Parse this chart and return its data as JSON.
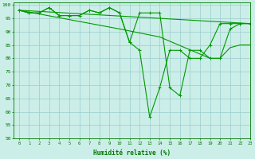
{
  "xlabel": "Humidité relative (%)",
  "xlim": [
    -0.5,
    23
  ],
  "ylim": [
    50,
    101
  ],
  "xticks": [
    0,
    1,
    2,
    3,
    4,
    5,
    6,
    7,
    8,
    9,
    10,
    11,
    12,
    13,
    14,
    15,
    16,
    17,
    18,
    19,
    20,
    21,
    22,
    23
  ],
  "yticks": [
    50,
    55,
    60,
    65,
    70,
    75,
    80,
    85,
    90,
    95,
    100
  ],
  "background_color": "#cceee8",
  "line_color": "#009900",
  "grid_color": "#99cccc",
  "line1_x": [
    0,
    1,
    2,
    3,
    4,
    5,
    6,
    7,
    8,
    9,
    10,
    11,
    12,
    13,
    14,
    15,
    16,
    17,
    18,
    19,
    20,
    21,
    22,
    23
  ],
  "line1_y": [
    98,
    97,
    97,
    99,
    96,
    96,
    96,
    98,
    97,
    99,
    97,
    86,
    83,
    58,
    69,
    83,
    83,
    80,
    80,
    85,
    93,
    93,
    93,
    93
  ],
  "line2_x": [
    0,
    1,
    2,
    3,
    4,
    5,
    6,
    7,
    8,
    9,
    10,
    11,
    12,
    13,
    14,
    15,
    16,
    17,
    18,
    19,
    20,
    21,
    22,
    23
  ],
  "line2_y": [
    98,
    97,
    97,
    99,
    96,
    96,
    96,
    98,
    97,
    99,
    97,
    86,
    97,
    97,
    97,
    69,
    66,
    83,
    83,
    80,
    80,
    91,
    93,
    93
  ],
  "line3_x": [
    0,
    23
  ],
  "line3_y": [
    98,
    93
  ],
  "line4_x": [
    0,
    10,
    14,
    19,
    20,
    21,
    22,
    23
  ],
  "line4_y": [
    98,
    91,
    88,
    80,
    80,
    84,
    85,
    85
  ]
}
